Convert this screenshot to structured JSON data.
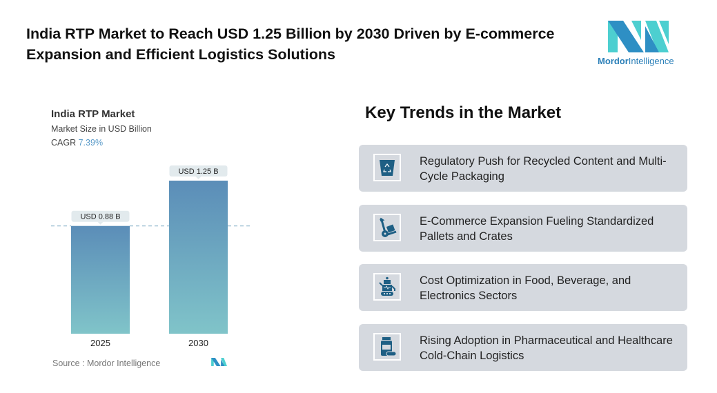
{
  "header": {
    "title": "India RTP Market to Reach USD 1.25 Billion by 2030 Driven by E-commerce Expansion and Efficient Logistics Solutions",
    "logo_text_bold": "Mordor",
    "logo_text": "Intelligence"
  },
  "chart_data": {
    "type": "bar",
    "title": "India RTP Market",
    "subtitle": "Market Size in USD Billion",
    "cagr_label": "CAGR",
    "cagr_value": "7.39%",
    "categories": [
      "2025",
      "2030"
    ],
    "values": [
      0.88,
      1.25
    ],
    "data_labels": [
      "USD 0.88 B",
      "USD 1.25 B"
    ],
    "source": "Source :  Mordor Intelligence",
    "colors": {
      "bar_top": "#5b8db8",
      "bar_bottom": "#80c4c9",
      "label_bg": "#e2eaed",
      "dashed": "#8ab4c9"
    }
  },
  "trends": {
    "heading": "Key Trends in the Market",
    "items": [
      {
        "icon": "recycle-bin-icon",
        "text": "Regulatory Push for Recycled Content and Multi-Cycle Packaging"
      },
      {
        "icon": "hand-truck-icon",
        "text": "E-Commerce Expansion Fueling Standardized Pallets and Crates"
      },
      {
        "icon": "robot-icon",
        "text": "Cost Optimization in Food, Beverage, and Electronics Sectors"
      },
      {
        "icon": "medicine-bottle-icon",
        "text": "Rising Adoption in Pharmaceutical and Healthcare Cold-Chain Logistics"
      }
    ],
    "icon_color": "#1e5f84"
  }
}
